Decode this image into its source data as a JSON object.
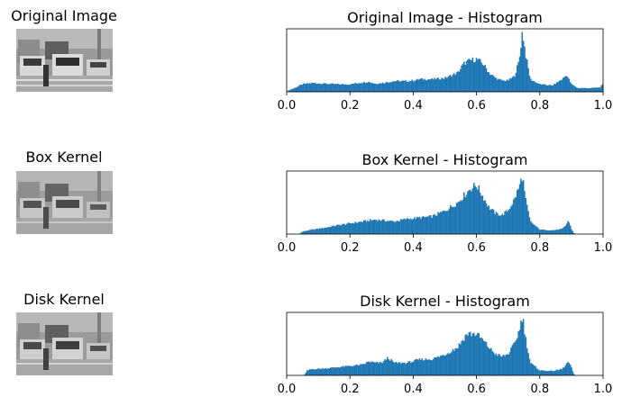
{
  "figure": {
    "rows": [
      {
        "image_title": "Original Image",
        "hist_title": "Original Image - Histogram"
      },
      {
        "image_title": "Box Kernel",
        "hist_title": "Box Kernel - Histogram"
      },
      {
        "image_title": "Disk Kernel",
        "hist_title": "Disk Kernel - Histogram"
      }
    ]
  },
  "chart_data": [
    {
      "type": "bar",
      "title": "Original Image - Histogram",
      "xlim": [
        0,
        1
      ],
      "xticks": [
        "0.0",
        "0.2",
        "0.4",
        "0.6",
        "0.8",
        "1.0"
      ],
      "color": "#1f77b4",
      "profile_x": [
        0.0,
        0.005,
        0.02,
        0.05,
        0.08,
        0.12,
        0.16,
        0.2,
        0.24,
        0.26,
        0.28,
        0.3,
        0.34,
        0.38,
        0.4,
        0.42,
        0.46,
        0.5,
        0.54,
        0.56,
        0.58,
        0.6,
        0.62,
        0.64,
        0.66,
        0.68,
        0.7,
        0.72,
        0.735,
        0.745,
        0.755,
        0.77,
        0.8,
        0.84,
        0.87,
        0.885,
        0.9,
        0.92,
        0.96,
        0.99,
        1.0
      ],
      "profile_y": [
        0.0,
        0.02,
        0.05,
        0.12,
        0.14,
        0.13,
        0.12,
        0.12,
        0.15,
        0.16,
        0.13,
        0.14,
        0.17,
        0.17,
        0.18,
        0.2,
        0.2,
        0.22,
        0.3,
        0.45,
        0.5,
        0.52,
        0.45,
        0.3,
        0.22,
        0.18,
        0.18,
        0.25,
        0.5,
        0.97,
        0.6,
        0.2,
        0.12,
        0.1,
        0.2,
        0.27,
        0.12,
        0.06,
        0.06,
        0.07,
        0.12
      ]
    },
    {
      "type": "bar",
      "title": "Box Kernel - Histogram",
      "xlim": [
        0,
        1
      ],
      "xticks": [
        "0.0",
        "0.2",
        "0.4",
        "0.6",
        "0.8",
        "1.0"
      ],
      "color": "#1f77b4",
      "profile_x": [
        0.0,
        0.04,
        0.05,
        0.08,
        0.12,
        0.16,
        0.2,
        0.24,
        0.28,
        0.3,
        0.34,
        0.38,
        0.42,
        0.46,
        0.5,
        0.54,
        0.58,
        0.6,
        0.62,
        0.64,
        0.66,
        0.68,
        0.7,
        0.72,
        0.735,
        0.745,
        0.755,
        0.77,
        0.8,
        0.84,
        0.87,
        0.88,
        0.89,
        0.9,
        0.91,
        1.0
      ],
      "profile_y": [
        0.0,
        0.0,
        0.04,
        0.07,
        0.1,
        0.14,
        0.17,
        0.2,
        0.23,
        0.22,
        0.2,
        0.24,
        0.26,
        0.28,
        0.37,
        0.5,
        0.72,
        0.78,
        0.6,
        0.42,
        0.33,
        0.3,
        0.38,
        0.55,
        0.75,
        0.93,
        0.55,
        0.2,
        0.07,
        0.06,
        0.08,
        0.12,
        0.22,
        0.08,
        0.0,
        0.0
      ]
    },
    {
      "type": "bar",
      "title": "Disk Kernel - Histogram",
      "xlim": [
        0,
        1
      ],
      "xticks": [
        "0.0",
        "0.2",
        "0.4",
        "0.6",
        "0.8",
        "1.0"
      ],
      "color": "#1f77b4",
      "profile_x": [
        0.0,
        0.055,
        0.065,
        0.08,
        0.12,
        0.16,
        0.2,
        0.24,
        0.26,
        0.28,
        0.3,
        0.32,
        0.34,
        0.38,
        0.42,
        0.46,
        0.5,
        0.54,
        0.57,
        0.6,
        0.62,
        0.64,
        0.66,
        0.68,
        0.7,
        0.72,
        0.735,
        0.745,
        0.755,
        0.77,
        0.8,
        0.84,
        0.87,
        0.88,
        0.89,
        0.9,
        0.91,
        1.0
      ],
      "profile_y": [
        0.0,
        0.0,
        0.08,
        0.1,
        0.11,
        0.13,
        0.15,
        0.17,
        0.22,
        0.2,
        0.2,
        0.28,
        0.2,
        0.2,
        0.25,
        0.26,
        0.33,
        0.45,
        0.66,
        0.66,
        0.56,
        0.44,
        0.34,
        0.3,
        0.34,
        0.5,
        0.72,
        0.95,
        0.6,
        0.2,
        0.08,
        0.07,
        0.1,
        0.15,
        0.22,
        0.12,
        0.0,
        0.0
      ]
    }
  ]
}
